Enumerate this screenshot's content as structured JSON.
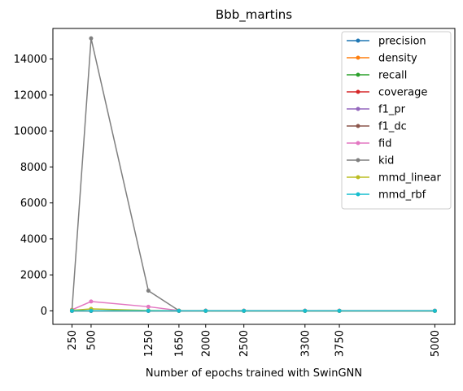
{
  "chart_data": {
    "type": "line",
    "title": "Bbb_martins",
    "xlabel": "Number of epochs trained with SwinGNN",
    "ylabel": "",
    "x": [
      250,
      500,
      1250,
      1650,
      2000,
      2500,
      3300,
      3750,
      5000
    ],
    "x_tick_labels": [
      "250",
      "500",
      "1250",
      "1650",
      "2000",
      "2500",
      "3300",
      "3750",
      "5000"
    ],
    "xlim": [
      0,
      5262
    ],
    "ylim": [
      -750,
      15700
    ],
    "y_ticks": [
      0,
      2000,
      4000,
      6000,
      8000,
      10000,
      12000,
      14000
    ],
    "y_tick_labels": [
      "0",
      "2000",
      "4000",
      "6000",
      "8000",
      "10000",
      "12000",
      "14000"
    ],
    "grid": false,
    "legend_position": "upper right",
    "series": [
      {
        "name": "precision",
        "color": "#1f77b4",
        "values": [
          0.5,
          0.6,
          0.7,
          0.7,
          0.7,
          0.7,
          0.7,
          0.7,
          0.7
        ]
      },
      {
        "name": "density",
        "color": "#ff7f0e",
        "values": [
          0.3,
          0.4,
          0.6,
          0.6,
          0.6,
          0.6,
          0.6,
          0.6,
          0.6
        ]
      },
      {
        "name": "recall",
        "color": "#2ca02c",
        "values": [
          0.2,
          0.3,
          0.5,
          0.5,
          0.5,
          0.5,
          0.5,
          0.5,
          0.5
        ]
      },
      {
        "name": "coverage",
        "color": "#d62728",
        "values": [
          0.3,
          0.4,
          0.6,
          0.6,
          0.6,
          0.6,
          0.6,
          0.6,
          0.6
        ]
      },
      {
        "name": "f1_pr",
        "color": "#9467bd",
        "values": [
          0.3,
          0.4,
          0.6,
          0.6,
          0.6,
          0.6,
          0.6,
          0.6,
          0.6
        ]
      },
      {
        "name": "f1_dc",
        "color": "#8c564b",
        "values": [
          0.3,
          0.4,
          0.6,
          0.6,
          0.6,
          0.6,
          0.6,
          0.6,
          0.6
        ]
      },
      {
        "name": "fid",
        "color": "#e377c2",
        "values": [
          60,
          520,
          230,
          20,
          12,
          10,
          10,
          10,
          10
        ]
      },
      {
        "name": "kid",
        "color": "#7f7f7f",
        "values": [
          40,
          15150,
          1120,
          15,
          5,
          3,
          3,
          3,
          3
        ]
      },
      {
        "name": "mmd_linear",
        "color": "#bcbd22",
        "values": [
          30,
          110,
          20,
          5,
          4,
          4,
          4,
          4,
          4
        ]
      },
      {
        "name": "mmd_rbf",
        "color": "#17becf",
        "values": [
          1,
          1,
          1,
          1,
          1,
          1,
          1,
          1,
          1
        ]
      }
    ]
  }
}
